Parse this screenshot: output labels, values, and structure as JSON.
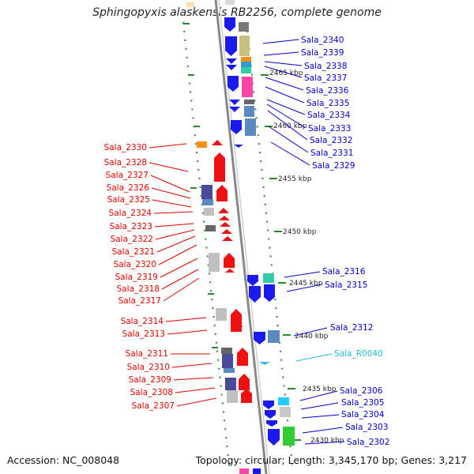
{
  "title": "Sphingopyxis alaskensis RB2256, complete genome",
  "footer": {
    "accession": "Accession: NC_008048",
    "summary": "Topology: circular; Length: 3,345,170 bp; Genes: 3,217"
  },
  "colors": {
    "forward_label": "#0000cc",
    "reverse_label": "#dd0000",
    "rna_label": "#22bbdd",
    "backbone": "#888888"
  },
  "kbp_marks": [
    "2465 kbp",
    "2460 kbp",
    "2455 kbp",
    "2450 kbp",
    "2445 kbp",
    "2440 kbp",
    "2435 kbp",
    "2430 kbp"
  ],
  "forward_genes": [
    "Sala_2340",
    "Sala_2339",
    "Sala_2338",
    "Sala_2337",
    "Sala_2336",
    "Sala_2335",
    "Sala_2334",
    "Sala_2333",
    "Sala_2332",
    "Sala_2331",
    "Sala_2329",
    "Sala_2316",
    "Sala_2315",
    "Sala_2312",
    "Sala_R0040",
    "Sala_2306",
    "Sala_2305",
    "Sala_2304",
    "Sala_2303",
    "Sala_2302"
  ],
  "reverse_genes": [
    "Sala_2330",
    "Sala_2328",
    "Sala_2327",
    "Sala_2326",
    "Sala_2325",
    "Sala_2324",
    "Sala_2323",
    "Sala_2322",
    "Sala_2321",
    "Sala_2320",
    "Sala_2319",
    "Sala_2318",
    "Sala_2317",
    "Sala_2314",
    "Sala_2313",
    "Sala_2311",
    "Sala_2310",
    "Sala_2309",
    "Sala_2308",
    "Sala_2307"
  ]
}
